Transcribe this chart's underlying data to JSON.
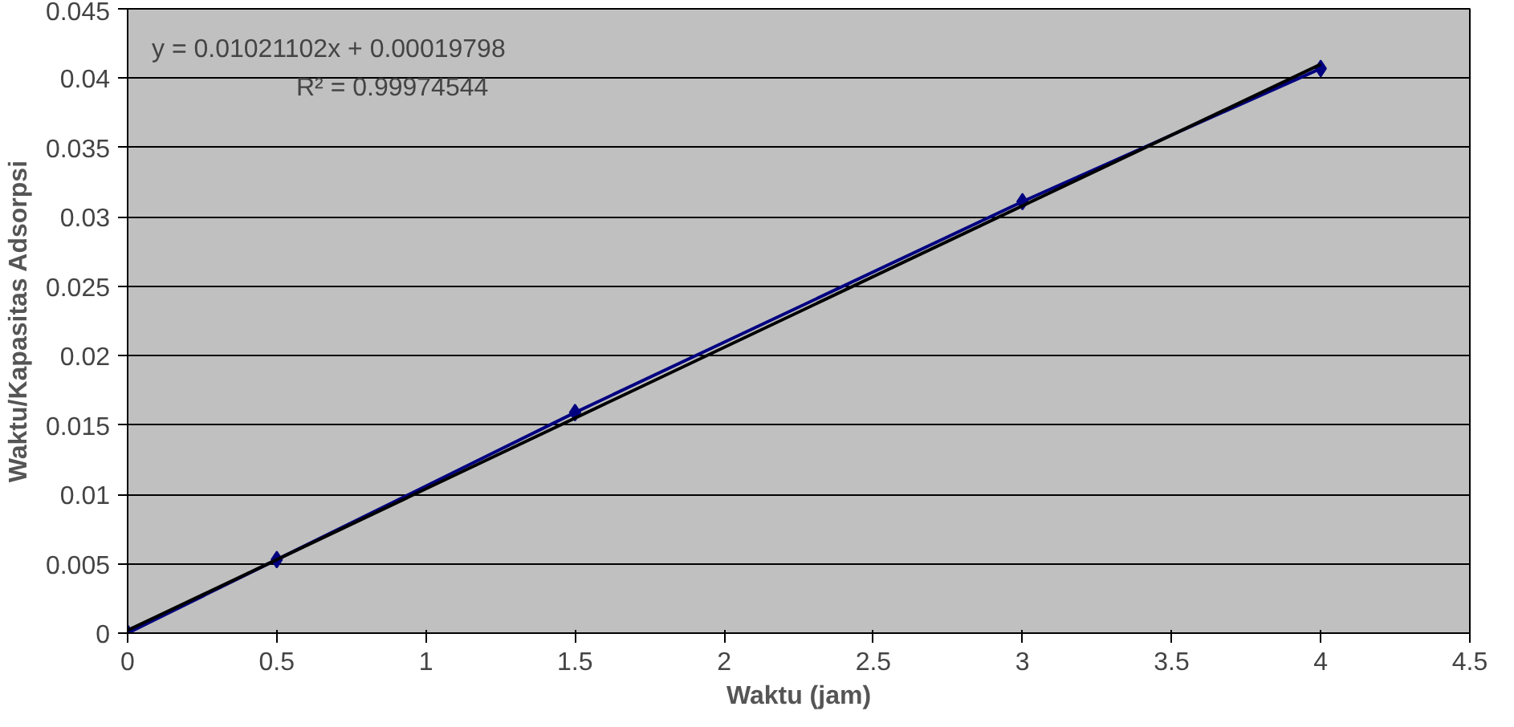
{
  "chart_data": {
    "type": "line",
    "xlabel": "Waktu (jam)",
    "ylabel": "Waktu/Kapasitas Adsorpsi",
    "x": [
      0,
      0.5,
      1.5,
      3,
      4
    ],
    "series": [
      {
        "color": "#000080",
        "marker": "diamond",
        "values": [
          0,
          0.0053,
          0.0159,
          0.0311,
          0.0407
        ]
      },
      {
        "color": "#000000",
        "marker": "none",
        "x": [
          0,
          4
        ],
        "values": [
          0.0002,
          0.041
        ]
      }
    ],
    "annotations": [
      "y = 0.01021102x + 0.00019798",
      "R² = 0.99974544"
    ],
    "xlim": [
      0,
      4.5
    ],
    "xticks": [
      0,
      0.5,
      1,
      1.5,
      2,
      2.5,
      3,
      3.5,
      4,
      4.5
    ],
    "ylim": [
      0,
      0.045
    ],
    "yticks": [
      0,
      0.005,
      0.01,
      0.015,
      0.02,
      0.025,
      0.03,
      0.035,
      0.04,
      0.045
    ],
    "grid": "y",
    "line_style": "solid"
  }
}
